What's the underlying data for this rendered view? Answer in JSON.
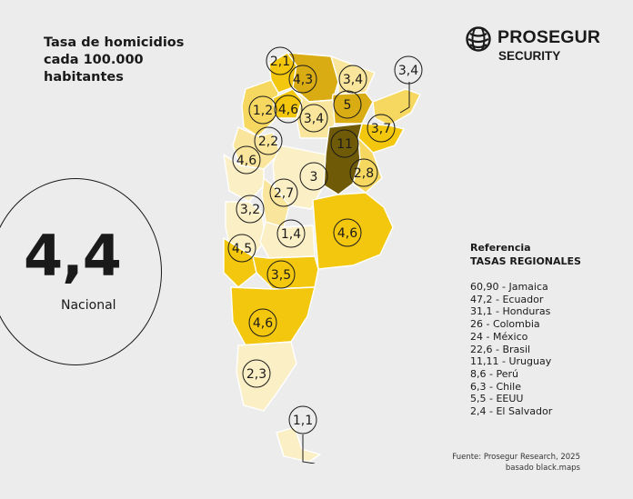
{
  "title": {
    "line1": "Tasa de homicidios",
    "line2": "cada 100.000",
    "line3": "habitantes"
  },
  "logo": {
    "name": "PROSEGUR",
    "subtitle": "SECURITY"
  },
  "national": {
    "value": "4,4",
    "label": "Nacional"
  },
  "colors": {
    "background": "#ececec",
    "lightest": "#fbefc6",
    "light": "#f9e59b",
    "medium": "#f6d860",
    "bright": "#f4c70f",
    "gold": "#d9ac14",
    "olive": "#a8860d",
    "dark": "#6f5a07",
    "ink": "#1a1a1a"
  },
  "map": {
    "province_rates": [
      "2,1",
      "4,3",
      "3,4",
      "3,4",
      "1,2",
      "4,6",
      "5",
      "3,4",
      "3,7",
      "2,2",
      "11",
      "4,6",
      "3",
      "2,8",
      "2,7",
      "3,2",
      "1,4",
      "4,6",
      "4,5",
      "3,5",
      "4,6",
      "2,3",
      "1,1"
    ]
  },
  "reference": {
    "title": "Referencia",
    "subtitle": "TASAS REGIONALES",
    "items": [
      "60,90 - Jamaica",
      "47,2 - Ecuador",
      "31,1 - Honduras",
      "26 - Colombia",
      "24 - México",
      "22,6 - Brasil",
      "11,11 - Uruguay",
      "8,6 - Perú",
      "6,3 - Chile",
      "5,5 - EEUU",
      "2,4 - El Salvador"
    ]
  },
  "source": {
    "line1": "Fuente: Prosegur Research, 2025",
    "line2": "basado black.maps"
  }
}
